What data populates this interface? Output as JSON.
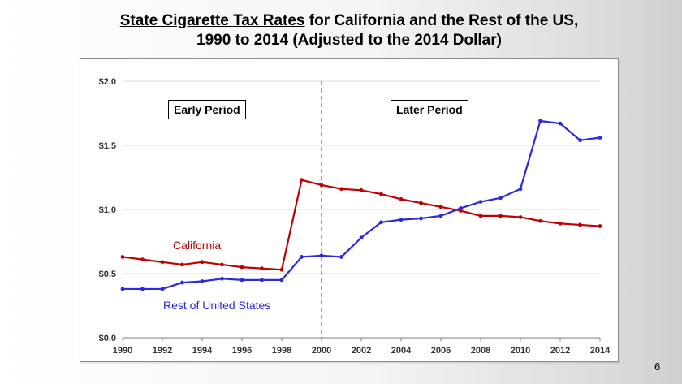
{
  "slide": {
    "title_underlined": "State Cigarette Tax Rates",
    "title_rest_line1": " for California and the Rest of the US,",
    "title_line2": "1990 to 2014  (Adjusted to the 2014 Dollar)",
    "page_number": "6"
  },
  "colors": {
    "california": "#c00000",
    "rest_of_us": "#2a2ae0",
    "grid": "#d9d9d9",
    "divider": "#808080"
  },
  "chart_data": {
    "type": "line",
    "title": "State Cigarette Tax Rates for California and the Rest of the US, 1990 to 2014 (Adjusted to the 2014 Dollar)",
    "xlabel": "",
    "ylabel": "",
    "x": [
      1990,
      1991,
      1992,
      1993,
      1994,
      1995,
      1996,
      1997,
      1998,
      1999,
      2000,
      2001,
      2002,
      2003,
      2004,
      2005,
      2006,
      2007,
      2008,
      2009,
      2010,
      2011,
      2012,
      2013,
      2014
    ],
    "x_tick_labels": [
      "1990",
      "1992",
      "1994",
      "1996",
      "1998",
      "2000",
      "2002",
      "2004",
      "2006",
      "2008",
      "2010",
      "2012",
      "2014"
    ],
    "y_tick_labels": [
      "$0.0",
      "$0.5",
      "$1.0",
      "$1.5",
      "$2.0"
    ],
    "ylim": [
      0,
      2.0
    ],
    "xlim": [
      1990,
      2014
    ],
    "grid": "horizontal",
    "series": [
      {
        "name": "California",
        "values": [
          0.63,
          0.61,
          0.59,
          0.57,
          0.59,
          0.57,
          0.55,
          0.54,
          0.53,
          1.23,
          1.19,
          1.16,
          1.15,
          1.12,
          1.08,
          1.05,
          1.02,
          0.99,
          0.95,
          0.95,
          0.94,
          0.91,
          0.89,
          0.88,
          0.87
        ]
      },
      {
        "name": "Rest of United States",
        "values": [
          0.38,
          0.38,
          0.38,
          0.43,
          0.44,
          0.46,
          0.45,
          0.45,
          0.45,
          0.63,
          0.64,
          0.63,
          0.78,
          0.9,
          0.92,
          0.93,
          0.95,
          1.01,
          1.06,
          1.09,
          1.16,
          1.69,
          1.67,
          1.54,
          1.56
        ]
      }
    ],
    "annotations": {
      "divider_year": 2000,
      "early_period": "Early Period",
      "later_period": "Later Period"
    }
  }
}
